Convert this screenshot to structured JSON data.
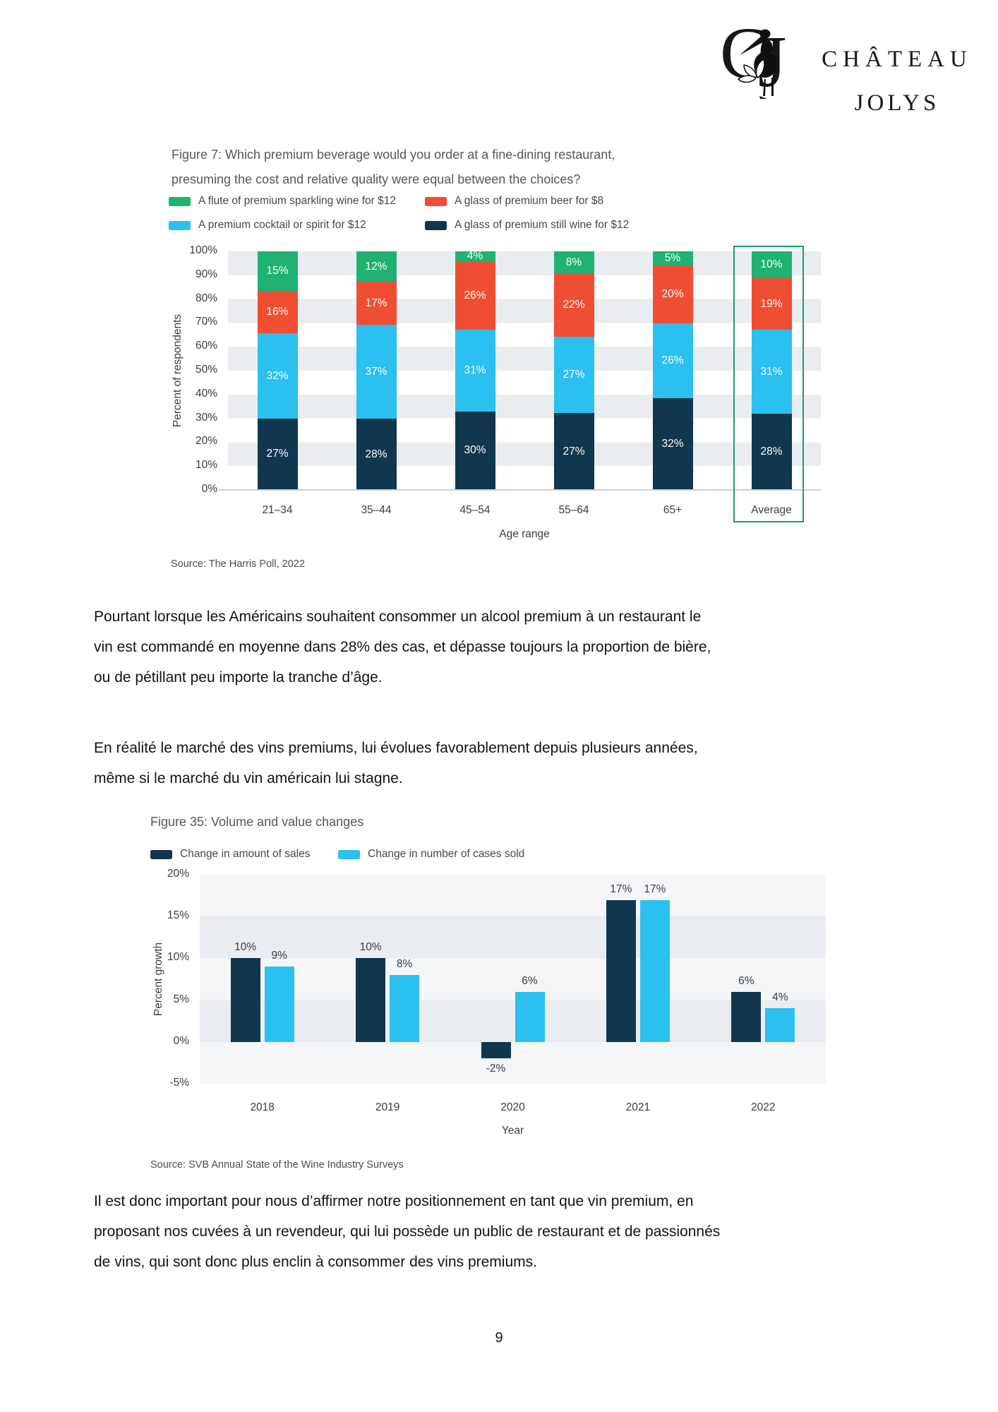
{
  "page_number": "9",
  "logo": {
    "monogram": "CJ",
    "line1": "CHÂTEAU",
    "line2": "JOLYS"
  },
  "paragraphs": [
    {
      "lines": [
        "Pourtant lorsque les Américains souhaitent consommer un alcool premium à un restaurant le",
        "vin est commandé en moyenne dans 28% des cas, et dépasse toujours la proportion de bière,",
        "ou de pétillant peu importe la tranche d’âge."
      ]
    },
    {
      "lines": [
        "En réalité le marché des vins premiums, lui évolues favorablement depuis plusieurs années,",
        "même si le marché du vin américain lui stagne."
      ]
    },
    {
      "lines": [
        "Il est donc important pour nous d’affirmer notre positionnement en tant que vin premium, en",
        "proposant nos cuvées à un revendeur, qui lui possède un public de restaurant et de passionnés",
        "de vins, qui sont donc plus enclin à consommer des vins premiums."
      ]
    }
  ],
  "chart_data": [
    {
      "id": "figure7",
      "type": "bar",
      "stacked": true,
      "normalized_to_100": true,
      "title_lines": [
        "Figure 7: Which premium beverage would you order at a fine-dining restaurant,",
        "presuming the cost and relative quality were equal between the choices?"
      ],
      "legend": [
        {
          "label": "A flute of premium sparkling wine for $12",
          "color": "#1fb273"
        },
        {
          "label": "A glass of premium beer for $8",
          "color": "#f04e33"
        },
        {
          "label": "A premium cocktail or spirit for $12",
          "color": "#2bc0ef"
        },
        {
          "label": "A glass of premium still wine for $12",
          "color": "#11374e"
        }
      ],
      "categories": [
        "21–34",
        "35–44",
        "45–54",
        "55–64",
        "65+",
        "Average"
      ],
      "series": [
        {
          "name": "A glass of premium still wine for $12",
          "color": "#11374e",
          "values": [
            27,
            28,
            30,
            27,
            32,
            28
          ]
        },
        {
          "name": "A premium cocktail or spirit for $12",
          "color": "#2bc0ef",
          "values": [
            32,
            37,
            31,
            27,
            26,
            31
          ]
        },
        {
          "name": "A glass of premium beer for $8",
          "color": "#f04e33",
          "values": [
            16,
            17,
            26,
            22,
            20,
            19
          ]
        },
        {
          "name": "A flute of premium sparkling wine for $12",
          "color": "#1fb273",
          "values": [
            15,
            12,
            4,
            8,
            5,
            10
          ]
        }
      ],
      "ylabel": "Percent of respondents",
      "xlabel": "Age range",
      "yticks": [
        "100%",
        "90%",
        "80%",
        "70%",
        "60%",
        "50%",
        "40%",
        "30%",
        "20%",
        "10%",
        "0%"
      ],
      "ylim": [
        0,
        100
      ],
      "grid": "horizontal-bands",
      "legend_position": "top",
      "highlight_category": "Average",
      "highlight_color": "#1d9a78",
      "source": "Source: The Harris Poll, 2022"
    },
    {
      "id": "figure35",
      "type": "bar",
      "grouped": true,
      "title": "Figure 35: Volume and value changes",
      "categories": [
        "2018",
        "2019",
        "2020",
        "2021",
        "2022"
      ],
      "series": [
        {
          "name": "Change in amount of sales",
          "color": "#11374e",
          "values": [
            10,
            10,
            -2,
            17,
            6
          ]
        },
        {
          "name": "Change in number of cases sold",
          "color": "#2bc0ef",
          "values": [
            9,
            8,
            6,
            17,
            4
          ]
        }
      ],
      "ylabel": "Percent growth",
      "xlabel": "Year",
      "yticks": [
        "20%",
        "15%",
        "10%",
        "5%",
        "0%",
        "-5%"
      ],
      "ylim": [
        -5,
        20
      ],
      "grid": "horizontal-bands",
      "legend_position": "top",
      "source": "Source: SVB Annual State of the Wine Industry Surveys"
    }
  ]
}
